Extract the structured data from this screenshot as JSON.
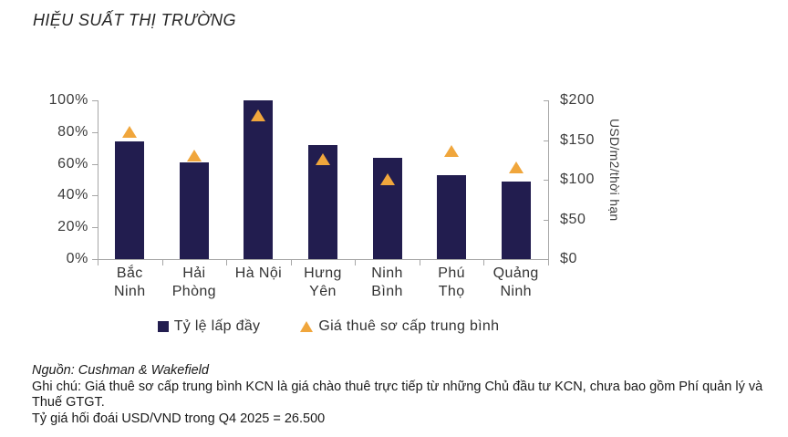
{
  "title": "HIỆU SUẤT THỊ TRƯỜNG",
  "chart_data": {
    "type": "bar",
    "title": "HIỆU SUẤT THỊ TRƯỜNG",
    "categories": [
      "Bắc Ninh",
      "Hải Phòng",
      "Hà Nội",
      "Hưng Yên",
      "Ninh Bình",
      "Phú Thọ",
      "Quảng Ninh"
    ],
    "category_label_lines": [
      [
        "Bắc",
        "Ninh"
      ],
      [
        "Hải",
        "Phòng"
      ],
      [
        "Hà Nội"
      ],
      [
        "Hưng",
        "Yên"
      ],
      [
        "Ninh",
        "Bình"
      ],
      [
        "Phú",
        "Thọ"
      ],
      [
        "Quảng",
        "Ninh"
      ]
    ],
    "series": [
      {
        "name": "Tỷ lệ lấp đầy",
        "type": "bar",
        "axis": "left",
        "unit": "%",
        "color": "#221d4f",
        "values": [
          74,
          61,
          100,
          72,
          64,
          53,
          49
        ]
      },
      {
        "name": "Giá thuê sơ cấp trung bình",
        "type": "scatter-triangle",
        "axis": "right",
        "unit": "USD/m2/thời hạn",
        "color": "#f0a63c",
        "values": [
          160,
          130,
          180,
          125,
          100,
          136,
          115
        ]
      }
    ],
    "left_axis": {
      "min": 0,
      "max": 100,
      "ticks": [
        "100%",
        "80%",
        "60%",
        "40%",
        "20%",
        "0%"
      ]
    },
    "right_axis": {
      "min": 0,
      "max": 200,
      "ticks": [
        "$200",
        "$150",
        "$100",
        "$50",
        "$0"
      ],
      "title": "USD/m2/thời hạn"
    },
    "grid": false,
    "legend_position": "bottom"
  },
  "legend": {
    "items": [
      {
        "label": "Tỷ lệ lấp đầy",
        "marker": "square",
        "color": "#221d4f"
      },
      {
        "label": "Giá thuê sơ cấp trung bình",
        "marker": "triangle",
        "color": "#f0a63c"
      }
    ]
  },
  "footer": {
    "source": "Nguồn: Cushman & Wakefield",
    "note_lines": [
      "Ghi chú: Giá thuê sơ cấp trung bình KCN là giá chào thuê trực tiếp từ những Chủ đầu tư KCN, chưa bao gồm Phí quản lý và",
      "Thuế GTGT."
    ],
    "note": "Ghi chú: Giá thuê sơ cấp trung bình KCN là giá chào thuê trực tiếp từ những Chủ đầu tư KCN, chưa bao gồm Phí quản lý và Thuế GTGT.",
    "exchange_rate": "Tỷ giá hối đoái USD/VND trong Q4 2025 = 26.500"
  },
  "colors": {
    "bar": "#221d4f",
    "marker": "#f0a63c",
    "axis": "#a6a6a6",
    "tick_text": "#3d3d3d",
    "body_text": "#1a1a1a"
  }
}
